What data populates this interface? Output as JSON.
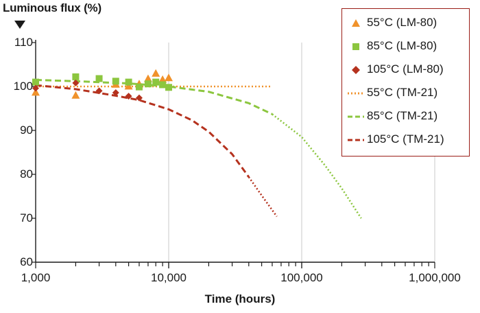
{
  "chart_data": {
    "type": "scatter",
    "title": "",
    "ylabel": "Luminous flux (%)",
    "xlabel": "Time (hours)",
    "x_scale": "log",
    "xlim": [
      1000,
      1000000
    ],
    "ylim": [
      60,
      110
    ],
    "x_ticks": [
      1000,
      10000,
      100000,
      1000000
    ],
    "x_tick_labels": [
      "1,000",
      "10,000",
      "100,000",
      "1,000,000"
    ],
    "y_ticks": [
      60,
      70,
      80,
      90,
      100,
      110
    ],
    "y_tick_labels": [
      "60",
      "70",
      "80",
      "90",
      "100",
      "110"
    ],
    "grid": "vertical at decades",
    "legend_position": "top-right",
    "series": [
      {
        "name": "55°C (LM-80)",
        "kind": "markers",
        "marker": "triangle",
        "color": "#f0922b",
        "x": [
          1000,
          2000,
          4000,
          5000,
          6000,
          7000,
          8000,
          9000,
          10000
        ],
        "y": [
          98.7,
          98.0,
          100.5,
          100.1,
          100.6,
          101.8,
          103.0,
          101.6,
          102.0
        ]
      },
      {
        "name": "85°C (LM-80)",
        "kind": "markers",
        "marker": "square",
        "color": "#8cc63f",
        "x": [
          1000,
          2000,
          3000,
          4000,
          5000,
          6000,
          7000,
          8000,
          9000,
          10000
        ],
        "y": [
          101.0,
          102.2,
          101.8,
          101.2,
          101.0,
          99.9,
          100.6,
          101.0,
          100.4,
          99.8
        ]
      },
      {
        "name": "105°C (LM-80)",
        "kind": "markers",
        "marker": "diamond",
        "color": "#b5321e",
        "x": [
          1000,
          2000,
          3000,
          4000,
          5000,
          6000
        ],
        "y": [
          99.6,
          100.8,
          99.0,
          98.6,
          97.8,
          97.4
        ]
      },
      {
        "name": "55°C (TM-21)",
        "kind": "line",
        "style": "dotted",
        "color": "#f0922b",
        "x": [
          1000,
          2000,
          5000,
          10000,
          20000,
          40000,
          60000
        ],
        "y": [
          100.0,
          100.0,
          100.0,
          100.0,
          100.0,
          100.0,
          100.0
        ]
      },
      {
        "name": "85°C (TM-21)",
        "kind": "line",
        "style": "dashed-to-dotted",
        "color": "#8cc63f",
        "x": [
          1000,
          2000,
          5000,
          10000,
          20000,
          40000,
          60000,
          100000,
          150000,
          200000,
          280000
        ],
        "y": [
          101.5,
          101.2,
          100.7,
          100.0,
          98.8,
          96.2,
          93.7,
          88.5,
          82.0,
          76.8,
          70.0
        ]
      },
      {
        "name": "105°C (TM-21)",
        "kind": "line",
        "style": "dashed-to-dotted",
        "color": "#b5321e",
        "x": [
          1000,
          2000,
          4000,
          6000,
          10000,
          15000,
          20000,
          30000,
          40000,
          50000,
          65000
        ],
        "y": [
          100.3,
          99.4,
          97.9,
          96.9,
          94.8,
          92.3,
          89.7,
          84.6,
          79.4,
          75.2,
          70.4
        ]
      }
    ]
  }
}
